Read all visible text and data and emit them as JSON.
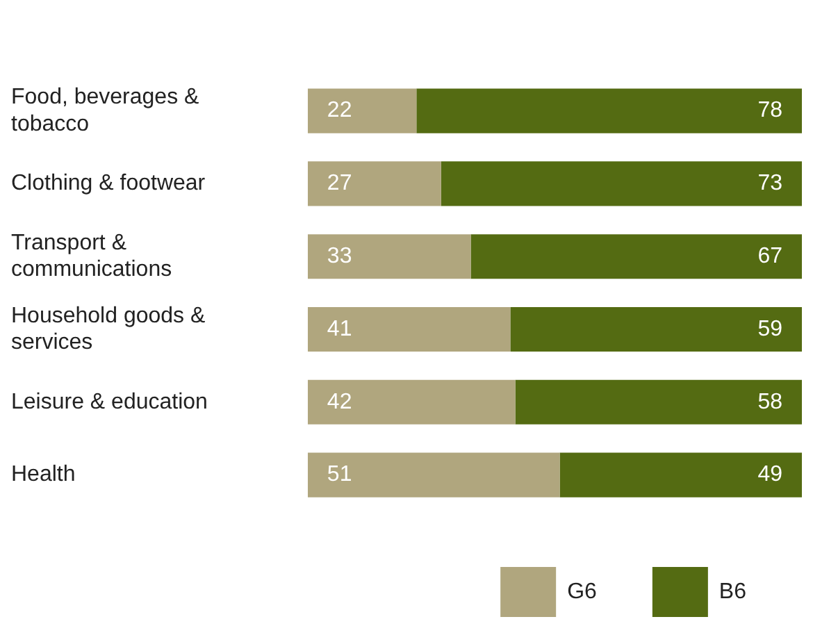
{
  "chart_data": {
    "type": "bar",
    "orientation": "horizontal",
    "stacked": true,
    "data_labels": true,
    "grid": false,
    "legend": "bottom right",
    "xlim": [
      0,
      100
    ],
    "tick_labels": "y",
    "categories": [
      "Food, beverages & tobacco",
      "Clothing & footwear",
      "Transport & communications",
      "Household goods & services",
      "Leisure & education",
      "Health"
    ],
    "series": [
      {
        "name": "G6",
        "color": "#b0a67e",
        "values": [
          22,
          27,
          33,
          41,
          42,
          51
        ]
      },
      {
        "name": "B6",
        "color": "#546b12",
        "values": [
          78,
          73,
          67,
          59,
          58,
          49
        ]
      }
    ]
  }
}
